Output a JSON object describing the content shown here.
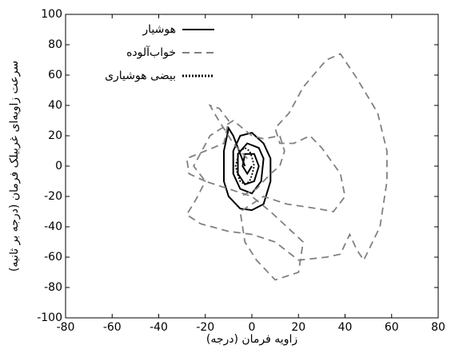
{
  "chart_data": {
    "type": "line",
    "x_label": "زاویه فرمان (درجه)",
    "y_label": "سرعت زاویه‌ای غربیلک فرمان (درجه بر ثانیه)",
    "xlim": [
      -80,
      80
    ],
    "xticks": [
      -80,
      -60,
      -40,
      -20,
      0,
      20,
      40,
      60,
      80
    ],
    "ylim": [
      -100,
      100
    ],
    "yticks": [
      -100,
      -80,
      -60,
      -40,
      -20,
      0,
      20,
      40,
      60,
      80,
      100
    ],
    "grid": false,
    "legend": "upper left",
    "series": [
      {
        "name": "هوشیار",
        "color": "#000000",
        "linestyle": "solid",
        "x": [
          -3,
          -8,
          -10,
          -12,
          -12,
          -10,
          -5,
          0,
          5,
          8,
          8,
          5,
          0,
          -5,
          -8,
          -8,
          -5,
          0,
          4,
          5,
          3,
          -2,
          -6,
          -6,
          -3,
          1,
          3,
          1,
          -3,
          -4,
          -2,
          0
        ],
        "values": [
          0,
          20,
          25,
          10,
          -10,
          -20,
          -28,
          -29,
          -25,
          -10,
          5,
          15,
          22,
          20,
          10,
          -5,
          -15,
          -18,
          -10,
          5,
          12,
          15,
          8,
          -5,
          -12,
          -10,
          0,
          8,
          8,
          0,
          -5,
          0
        ]
      },
      {
        "name": "خواب‌آلوده",
        "color": "#808080",
        "linestyle": "dashed",
        "x": [
          -2,
          -8,
          -15,
          -18,
          -14,
          -10,
          -12,
          -20,
          -28,
          -27,
          -20,
          -24,
          -28,
          -22,
          -10,
          0,
          10,
          20,
          32,
          38,
          42,
          45,
          48,
          55,
          58,
          58,
          54,
          45,
          38,
          32,
          22,
          16,
          10,
          12,
          18,
          25,
          30,
          38,
          40,
          35,
          28,
          15,
          5,
          -5,
          -3,
          2,
          10,
          20,
          22,
          15,
          8,
          0,
          -10,
          -20,
          -25,
          -18,
          -8,
          0,
          5,
          12,
          14,
          12,
          8,
          2,
          -5
        ],
        "values": [
          5,
          15,
          32,
          40,
          38,
          30,
          15,
          10,
          5,
          -5,
          -10,
          -22,
          -32,
          -38,
          -43,
          -45,
          -50,
          -62,
          -60,
          -58,
          -45,
          -55,
          -62,
          -40,
          -10,
          10,
          35,
          58,
          74,
          70,
          52,
          35,
          25,
          15,
          15,
          20,
          12,
          -5,
          -20,
          -30,
          -28,
          -25,
          -20,
          -30,
          -50,
          -62,
          -75,
          -70,
          -50,
          -40,
          -30,
          -20,
          -15,
          -10,
          0,
          20,
          30,
          20,
          18,
          20,
          10,
          0,
          -5,
          -15,
          -20
        ]
      },
      {
        "name": "بیضی هوشیاری",
        "color": "#000000",
        "linestyle": "dotted",
        "x": [
          -3,
          -1,
          0,
          1,
          0,
          -1,
          -3,
          -5,
          -6,
          -7,
          -6,
          -5,
          -3
        ],
        "values": [
          12,
          10,
          6,
          0,
          -6,
          -10,
          -12,
          -10,
          -6,
          0,
          6,
          10,
          12
        ]
      }
    ]
  }
}
